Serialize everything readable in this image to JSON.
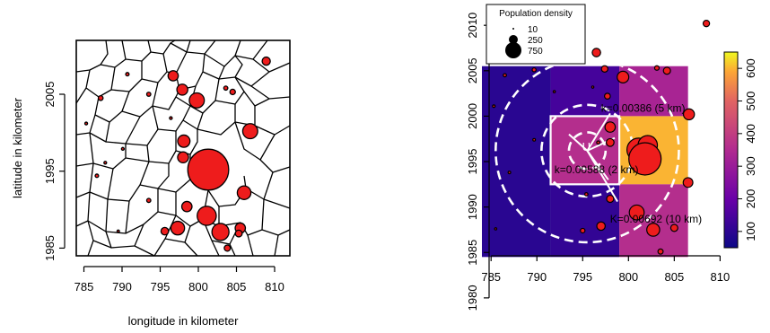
{
  "chart_data": [
    {
      "type": "map",
      "xlabel": "longitude in kilometer",
      "ylabel": "latitude in kilometer",
      "xlim": [
        784,
        812
      ],
      "ylim": [
        1984,
        2012
      ],
      "xticks": [
        785,
        790,
        795,
        800,
        805,
        810
      ],
      "yticks": [
        1985,
        1995,
        2005
      ],
      "grid": false,
      "points": [
        {
          "x": 808.9,
          "y": 2009.3,
          "r": 1.2
        },
        {
          "x": 796.7,
          "y": 2007.4,
          "r": 1.5
        },
        {
          "x": 803.6,
          "y": 2005.8,
          "r": 0.6
        },
        {
          "x": 790.7,
          "y": 2007.6,
          "r": 0.5
        },
        {
          "x": 797.9,
          "y": 2005.6,
          "r": 1.6
        },
        {
          "x": 804.5,
          "y": 2005.3,
          "r": 0.8
        },
        {
          "x": 787.2,
          "y": 2004.5,
          "r": 0.7
        },
        {
          "x": 799.8,
          "y": 2004.2,
          "r": 2.2
        },
        {
          "x": 793.5,
          "y": 2005.0,
          "r": 0.6
        },
        {
          "x": 796.4,
          "y": 2001.9,
          "r": 0.4
        },
        {
          "x": 785.3,
          "y": 2001.2,
          "r": 0.4
        },
        {
          "x": 806.8,
          "y": 2000.2,
          "r": 2.2
        },
        {
          "x": 798.1,
          "y": 1998.9,
          "r": 1.8
        },
        {
          "x": 790.1,
          "y": 1997.9,
          "r": 0.4
        },
        {
          "x": 798.0,
          "y": 1996.8,
          "r": 1.6
        },
        {
          "x": 787.8,
          "y": 1996.1,
          "r": 0.4
        },
        {
          "x": 800.6,
          "y": 1995.5,
          "r": 4.0
        },
        {
          "x": 801.6,
          "y": 1996.0,
          "r": 3.2
        },
        {
          "x": 801.3,
          "y": 1995.2,
          "r": 6.0
        },
        {
          "x": 786.7,
          "y": 1994.4,
          "r": 0.5
        },
        {
          "x": 806.0,
          "y": 1992.2,
          "r": 2.0
        },
        {
          "x": 793.5,
          "y": 1991.2,
          "r": 0.6
        },
        {
          "x": 798.5,
          "y": 1990.4,
          "r": 1.5
        },
        {
          "x": 801.1,
          "y": 1989.2,
          "r": 2.8
        },
        {
          "x": 797.3,
          "y": 1987.6,
          "r": 2.0
        },
        {
          "x": 795.6,
          "y": 1987.2,
          "r": 1.1
        },
        {
          "x": 802.9,
          "y": 1987.1,
          "r": 2.5
        },
        {
          "x": 805.5,
          "y": 1987.6,
          "r": 1.5
        },
        {
          "x": 805.3,
          "y": 1986.9,
          "r": 1.0
        },
        {
          "x": 803.8,
          "y": 1985.0,
          "r": 0.9
        },
        {
          "x": 789.5,
          "y": 1987.2,
          "r": 0.3
        }
      ]
    },
    {
      "type": "heatmap",
      "xlim": [
        784,
        813
      ],
      "ylim": [
        1979,
        2011.5
      ],
      "xticks": [
        785,
        790,
        795,
        800,
        805,
        810
      ],
      "yticks": [
        1980,
        1985,
        1990,
        1995,
        2000,
        2005,
        2010
      ],
      "grid": false,
      "cells": [
        {
          "x0": 784,
          "x1": 791.5,
          "y0": 1984.5,
          "y1": 2005.5,
          "value": 95
        },
        {
          "x0": 791.5,
          "x1": 799,
          "y0": 2000,
          "y1": 2005.5,
          "value": 140
        },
        {
          "x0": 799,
          "x1": 806.5,
          "y0": 2000,
          "y1": 2005.5,
          "value": 330
        },
        {
          "x0": 791.5,
          "x1": 799,
          "y0": 1992.5,
          "y1": 2000,
          "value": 360
        },
        {
          "x0": 799,
          "x1": 806.5,
          "y0": 1992.5,
          "y1": 2000,
          "value": 600
        },
        {
          "x0": 791.5,
          "x1": 799,
          "y0": 1984.5,
          "y1": 1992.5,
          "value": 110
        },
        {
          "x0": 799,
          "x1": 806.5,
          "y0": 1984.5,
          "y1": 1992.5,
          "value": 360
        }
      ],
      "colorbar": {
        "min": 50,
        "max": 650,
        "ticks": [
          100,
          200,
          300,
          400,
          500,
          600
        ]
      },
      "points": [
        {
          "x": 808.5,
          "y": 2010.2,
          "r": 1.0
        },
        {
          "x": 796.5,
          "y": 2007.0,
          "r": 1.3
        },
        {
          "x": 789.7,
          "y": 2005.1,
          "r": 0.6
        },
        {
          "x": 797.4,
          "y": 2005.2,
          "r": 1.0
        },
        {
          "x": 803.1,
          "y": 2005.3,
          "r": 0.7
        },
        {
          "x": 804.2,
          "y": 2005.0,
          "r": 1.1
        },
        {
          "x": 786.5,
          "y": 2004.5,
          "r": 0.5
        },
        {
          "x": 799.4,
          "y": 2004.3,
          "r": 1.8
        },
        {
          "x": 796.1,
          "y": 2003.2,
          "r": 0.3
        },
        {
          "x": 791.9,
          "y": 2002.7,
          "r": 0.3
        },
        {
          "x": 797.7,
          "y": 2002.2,
          "r": 0.9
        },
        {
          "x": 785.3,
          "y": 2001.1,
          "r": 0.4
        },
        {
          "x": 806.6,
          "y": 2000.2,
          "r": 1.7
        },
        {
          "x": 798.0,
          "y": 1998.8,
          "r": 1.6
        },
        {
          "x": 789.7,
          "y": 1997.4,
          "r": 0.4
        },
        {
          "x": 796.7,
          "y": 1997.1,
          "r": 0.5
        },
        {
          "x": 798.0,
          "y": 1997.1,
          "r": 1.2
        },
        {
          "x": 801.1,
          "y": 1996.3,
          "r": 3.6
        },
        {
          "x": 802.1,
          "y": 1996.8,
          "r": 3.0
        },
        {
          "x": 801.8,
          "y": 1995.3,
          "r": 5.0
        },
        {
          "x": 787.0,
          "y": 1993.8,
          "r": 0.4
        },
        {
          "x": 806.5,
          "y": 1992.7,
          "r": 1.5
        },
        {
          "x": 795.4,
          "y": 1991.4,
          "r": 0.5
        },
        {
          "x": 798.0,
          "y": 1990.9,
          "r": 1.1
        },
        {
          "x": 800.9,
          "y": 1989.4,
          "r": 2.3
        },
        {
          "x": 797.0,
          "y": 1987.9,
          "r": 1.3
        },
        {
          "x": 795.0,
          "y": 1987.4,
          "r": 0.7
        },
        {
          "x": 802.7,
          "y": 1987.5,
          "r": 2.0
        },
        {
          "x": 805.0,
          "y": 1987.7,
          "r": 1.1
        },
        {
          "x": 785.5,
          "y": 1987.6,
          "r": 0.3
        },
        {
          "x": 803.5,
          "y": 1985.1,
          "r": 0.8
        }
      ],
      "circle_center": {
        "x": 795.5,
        "y": 1996.2
      },
      "circle_radii": [
        2,
        5,
        10
      ],
      "annotations": [
        {
          "text": "k=0.00386 (5 km)",
          "x": 801.6,
          "y": 2000.5
        },
        {
          "text": "k=0.00588 (2 km)",
          "x": 796.5,
          "y": 1993.7
        },
        {
          "text": "K=0.00692 (10 km)",
          "x": 803.0,
          "y": 1988.3
        },
        {
          "text": "U",
          "x": 795.4,
          "y": 1996.2
        }
      ],
      "legend": {
        "title": "Population density",
        "entries": [
          {
            "label": "10",
            "value": 10
          },
          {
            "label": "250",
            "value": 250
          },
          {
            "label": "750",
            "value": 750
          }
        ],
        "position": "top-left"
      }
    }
  ]
}
